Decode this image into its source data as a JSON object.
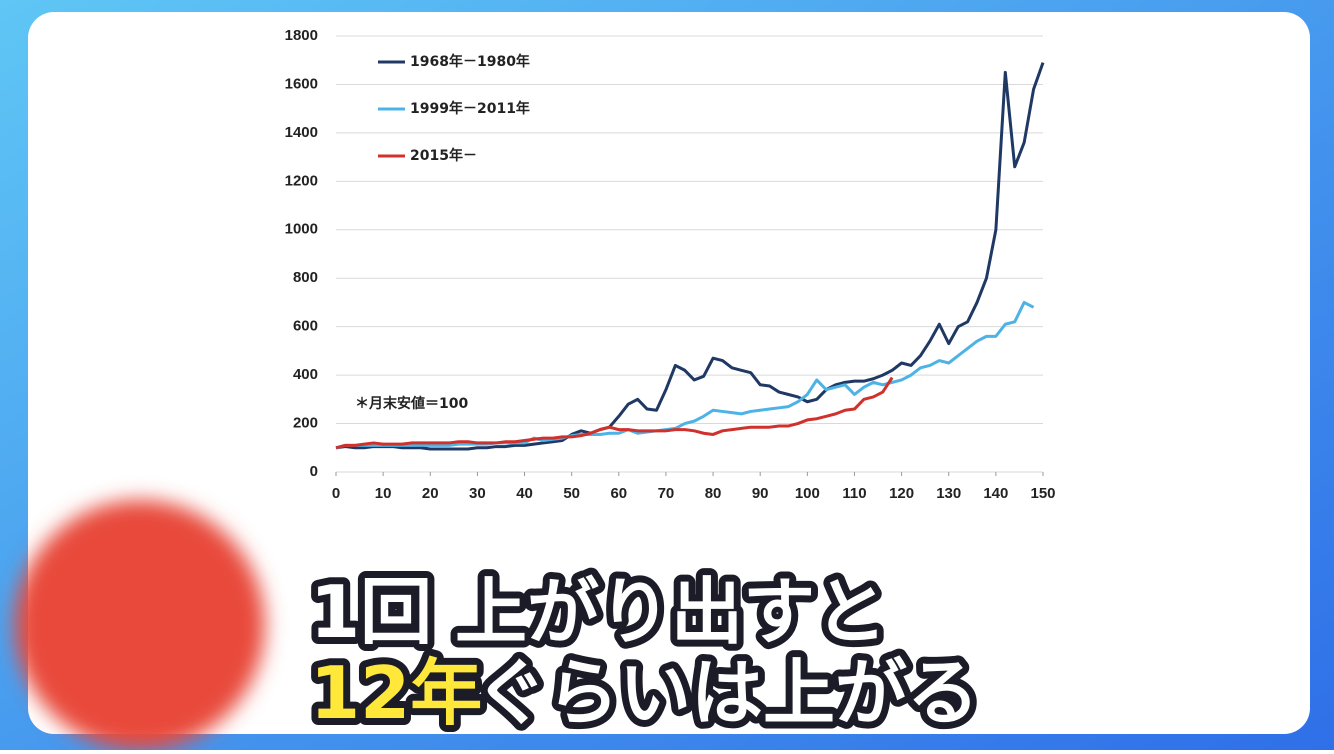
{
  "chart_data": {
    "type": "line",
    "x": [
      0,
      2,
      4,
      6,
      8,
      10,
      12,
      14,
      16,
      18,
      20,
      22,
      24,
      26,
      28,
      30,
      32,
      34,
      36,
      38,
      40,
      42,
      44,
      46,
      48,
      50,
      52,
      54,
      56,
      58,
      60,
      62,
      64,
      66,
      68,
      70,
      72,
      74,
      76,
      78,
      80,
      82,
      84,
      86,
      88,
      90,
      92,
      94,
      96,
      98,
      100,
      102,
      104,
      106,
      108,
      110,
      112,
      114,
      116,
      118,
      120,
      122,
      124,
      126,
      128,
      130,
      132,
      134,
      136,
      138,
      140,
      142,
      144,
      146,
      148,
      150
    ],
    "series": [
      {
        "name": "1968年－1980年",
        "color": "#1f3864",
        "values": [
          100,
          105,
          100,
          100,
          105,
          105,
          105,
          100,
          100,
          100,
          95,
          95,
          95,
          95,
          95,
          100,
          100,
          105,
          105,
          110,
          110,
          115,
          120,
          125,
          130,
          155,
          170,
          160,
          175,
          185,
          230,
          280,
          300,
          260,
          255,
          340,
          440,
          420,
          380,
          395,
          470,
          460,
          430,
          420,
          410,
          360,
          355,
          330,
          320,
          310,
          290,
          300,
          340,
          360,
          370,
          375,
          375,
          385,
          400,
          420,
          450,
          440,
          480,
          540,
          610,
          530,
          600,
          620,
          700,
          800,
          1000,
          1650,
          1260,
          1360,
          1580,
          1690
        ]
      },
      {
        "name": "1999年－2011年",
        "color": "#4db3e6",
        "values": [
          100,
          110,
          110,
          110,
          110,
          110,
          110,
          110,
          110,
          110,
          110,
          110,
          110,
          115,
          115,
          115,
          115,
          120,
          120,
          120,
          120,
          140,
          130,
          135,
          140,
          150,
          155,
          155,
          155,
          160,
          160,
          175,
          160,
          165,
          170,
          175,
          180,
          200,
          210,
          230,
          255,
          250,
          245,
          240,
          250,
          255,
          260,
          265,
          270,
          290,
          320,
          380,
          340,
          350,
          360,
          320,
          350,
          370,
          360,
          370,
          380,
          400,
          430,
          440,
          460,
          450,
          480,
          510,
          540,
          560,
          560,
          610,
          620,
          700,
          680,
          null
        ]
      },
      {
        "name": "2015年－",
        "color": "#d0312d",
        "values": [
          100,
          110,
          110,
          115,
          120,
          115,
          115,
          115,
          120,
          120,
          120,
          120,
          120,
          125,
          125,
          120,
          120,
          120,
          125,
          125,
          130,
          135,
          140,
          140,
          145,
          145,
          150,
          160,
          175,
          185,
          175,
          175,
          170,
          170,
          170,
          170,
          175,
          175,
          170,
          160,
          155,
          170,
          175,
          180,
          185,
          185,
          185,
          190,
          190,
          200,
          215,
          220,
          230,
          240,
          255,
          260,
          300,
          310,
          330,
          390,
          null,
          null,
          null,
          null,
          null,
          null,
          null,
          null,
          null,
          null,
          null,
          null,
          null,
          null,
          null,
          null
        ]
      }
    ],
    "xlim": [
      0,
      150
    ],
    "ylim": [
      0,
      1800
    ],
    "xticks": [
      0,
      10,
      20,
      30,
      40,
      50,
      60,
      70,
      80,
      90,
      100,
      110,
      120,
      130,
      140,
      150
    ],
    "yticks": [
      0,
      200,
      400,
      600,
      800,
      1000,
      1200,
      1400,
      1600,
      1800
    ],
    "grid": true,
    "annotation": "＊月末安値＝100"
  },
  "caption": {
    "line1": [
      "1回",
      "上がり出すと"
    ],
    "line2": [
      "12年",
      "ぐらいは上がる"
    ]
  }
}
